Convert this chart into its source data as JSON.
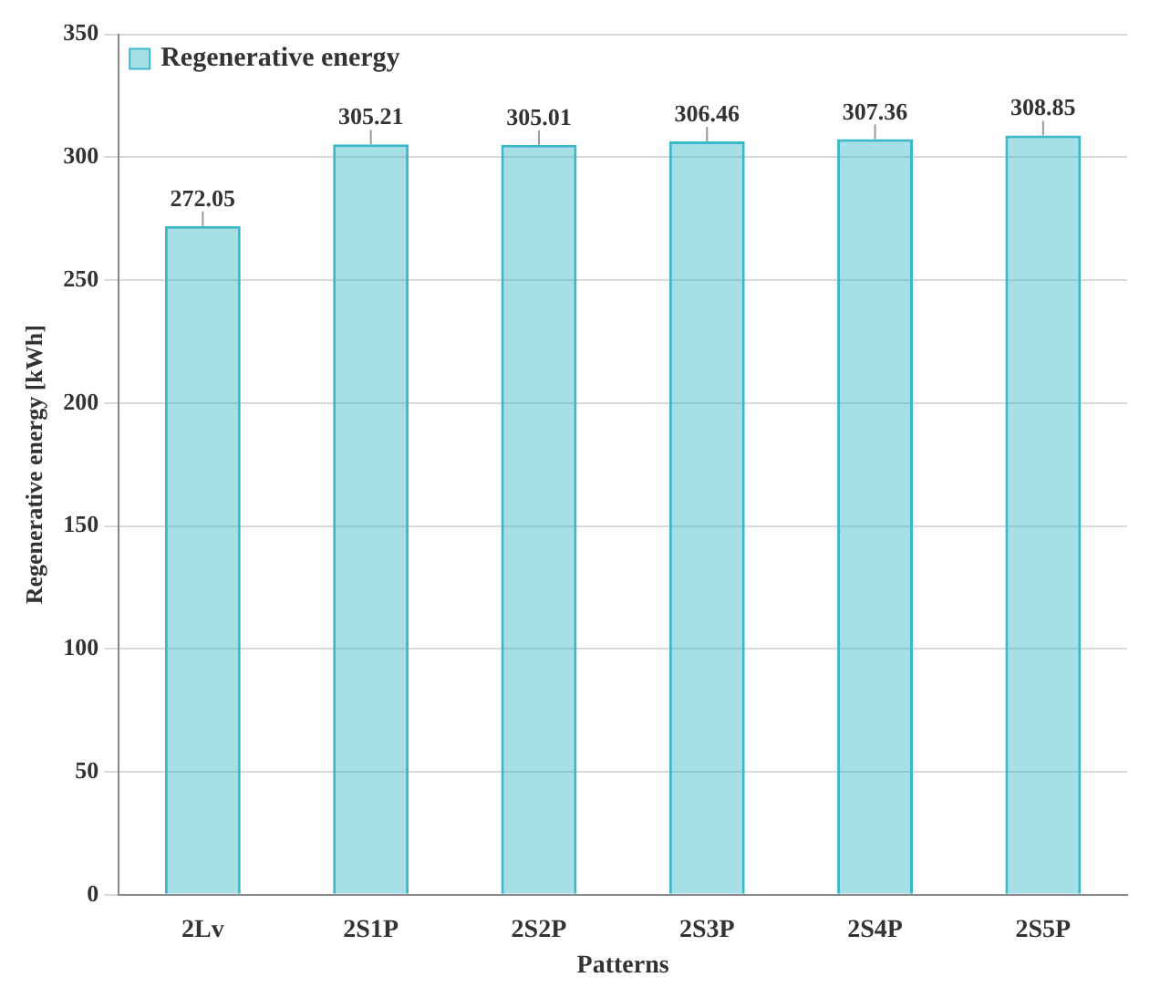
{
  "chart_data": {
    "type": "bar",
    "xlabel": "Patterns",
    "ylabel": "Regenerative energy [kWh]",
    "categories": [
      "2Lv",
      "2S1P",
      "2S2P",
      "2S3P",
      "2S4P",
      "2S5P"
    ],
    "series": [
      {
        "name": "Regenerative energy",
        "color": "#3cb9c9",
        "values": [
          272.05,
          305.21,
          305.01,
          306.46,
          307.36,
          308.85
        ]
      }
    ],
    "ylim": [
      0,
      350
    ],
    "yticks": [
      0,
      50,
      100,
      150,
      200,
      250,
      300,
      350
    ],
    "grid": "y",
    "legend": "top left",
    "data_labels": true
  }
}
